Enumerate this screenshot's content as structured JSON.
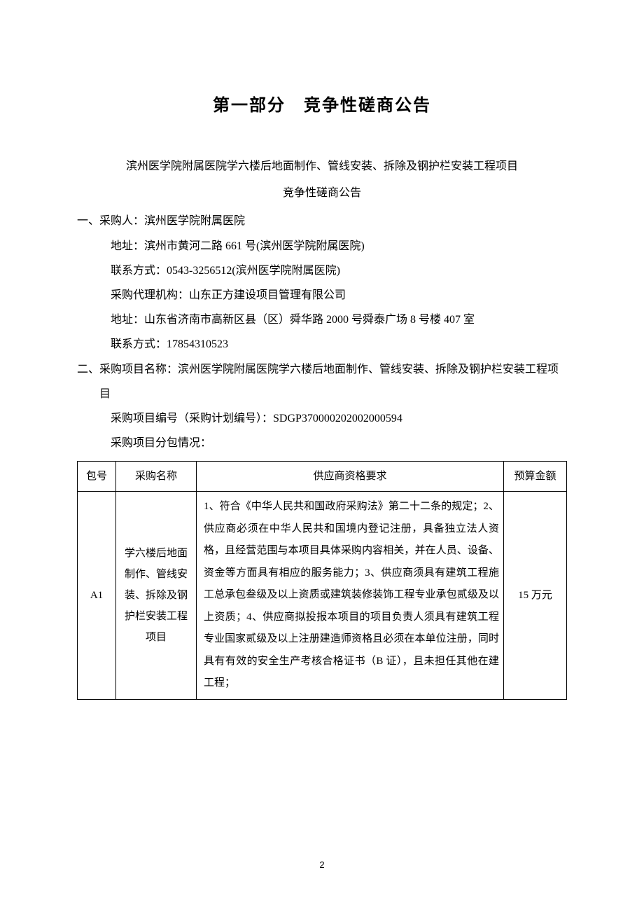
{
  "page": {
    "title": "第一部分　竞争性磋商公告",
    "subtitle_line1": "滨州医学院附属医院学六楼后地面制作、管线安装、拆除及钢护栏安装工程项目",
    "subtitle_line2": "竞争性磋商公告",
    "page_number": "2"
  },
  "section1": {
    "heading": "一、采购人：滨州医学院附属医院",
    "addr": "地址：滨州市黄河二路 661 号(滨州医学院附属医院)",
    "contact": "联系方式：0543-3256512(滨州医学院附属医院)",
    "agency": "采购代理机构：山东正方建设项目管理有限公司",
    "agency_addr": "地址：山东省济南市高新区县（区）舜华路 2000 号舜泰广场 8 号楼 407 室",
    "agency_contact": "联系方式：17854310523"
  },
  "section2": {
    "heading": "二、采购项目名称：滨州医学院附属医院学六楼后地面制作、管线安装、拆除及钢护栏安装工程项目",
    "proj_no": "采购项目编号（采购计划编号）：SDGP370000202002000594",
    "pkg_intro": "采购项目分包情况："
  },
  "table": {
    "headers": {
      "pkg": "包号",
      "name": "采购名称",
      "req": "供应商资格要求",
      "budget": "预算金额"
    },
    "row": {
      "pkg": "A1",
      "name": "学六楼后地面制作、管线安装、拆除及钢护栏安装工程项目",
      "req": "1、符合《中华人民共和国政府采购法》第二十二条的规定；2、供应商必须在中华人民共和国境内登记注册，具备独立法人资格，且经营范围与本项目具体采购内容相关，并在人员、设备、资金等方面具有相应的服务能力；3、供应商须具有建筑工程施工总承包叁级及以上资质或建筑装修装饰工程专业承包贰级及以上资质；4、供应商拟投报本项目的项目负责人须具有建筑工程专业国家贰级及以上注册建造师资格且必须在本单位注册，同时具有有效的安全生产考核合格证书（B 证），且未担任其他在建工程；",
      "budget": "15 万元"
    }
  },
  "style": {
    "background_color": "#ffffff",
    "text_color": "#000000",
    "border_color": "#000000",
    "title_fontsize": 24,
    "body_fontsize": 16,
    "table_fontsize": 15,
    "line_height": 2.2
  }
}
